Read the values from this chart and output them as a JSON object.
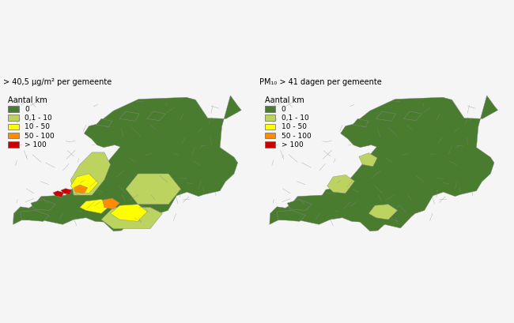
{
  "left_title": "> 40,5 μg/m² per gemeente",
  "right_title": "PM₁₀ > 41 dagen per gemeente",
  "legend_title": "Aantal km",
  "legend_labels": [
    "0",
    "0,1 - 10",
    "10 - 50",
    "50 - 100",
    "> 100"
  ],
  "legend_colors": [
    "#4a7c2f",
    "#bcd35f",
    "#ffff00",
    "#ff8c00",
    "#cc0000"
  ],
  "background_color": "#f5f5f5",
  "map_background": "#ffffff",
  "border_color": "#999999",
  "figsize": [
    6.5,
    4.09
  ],
  "dpi": 100
}
